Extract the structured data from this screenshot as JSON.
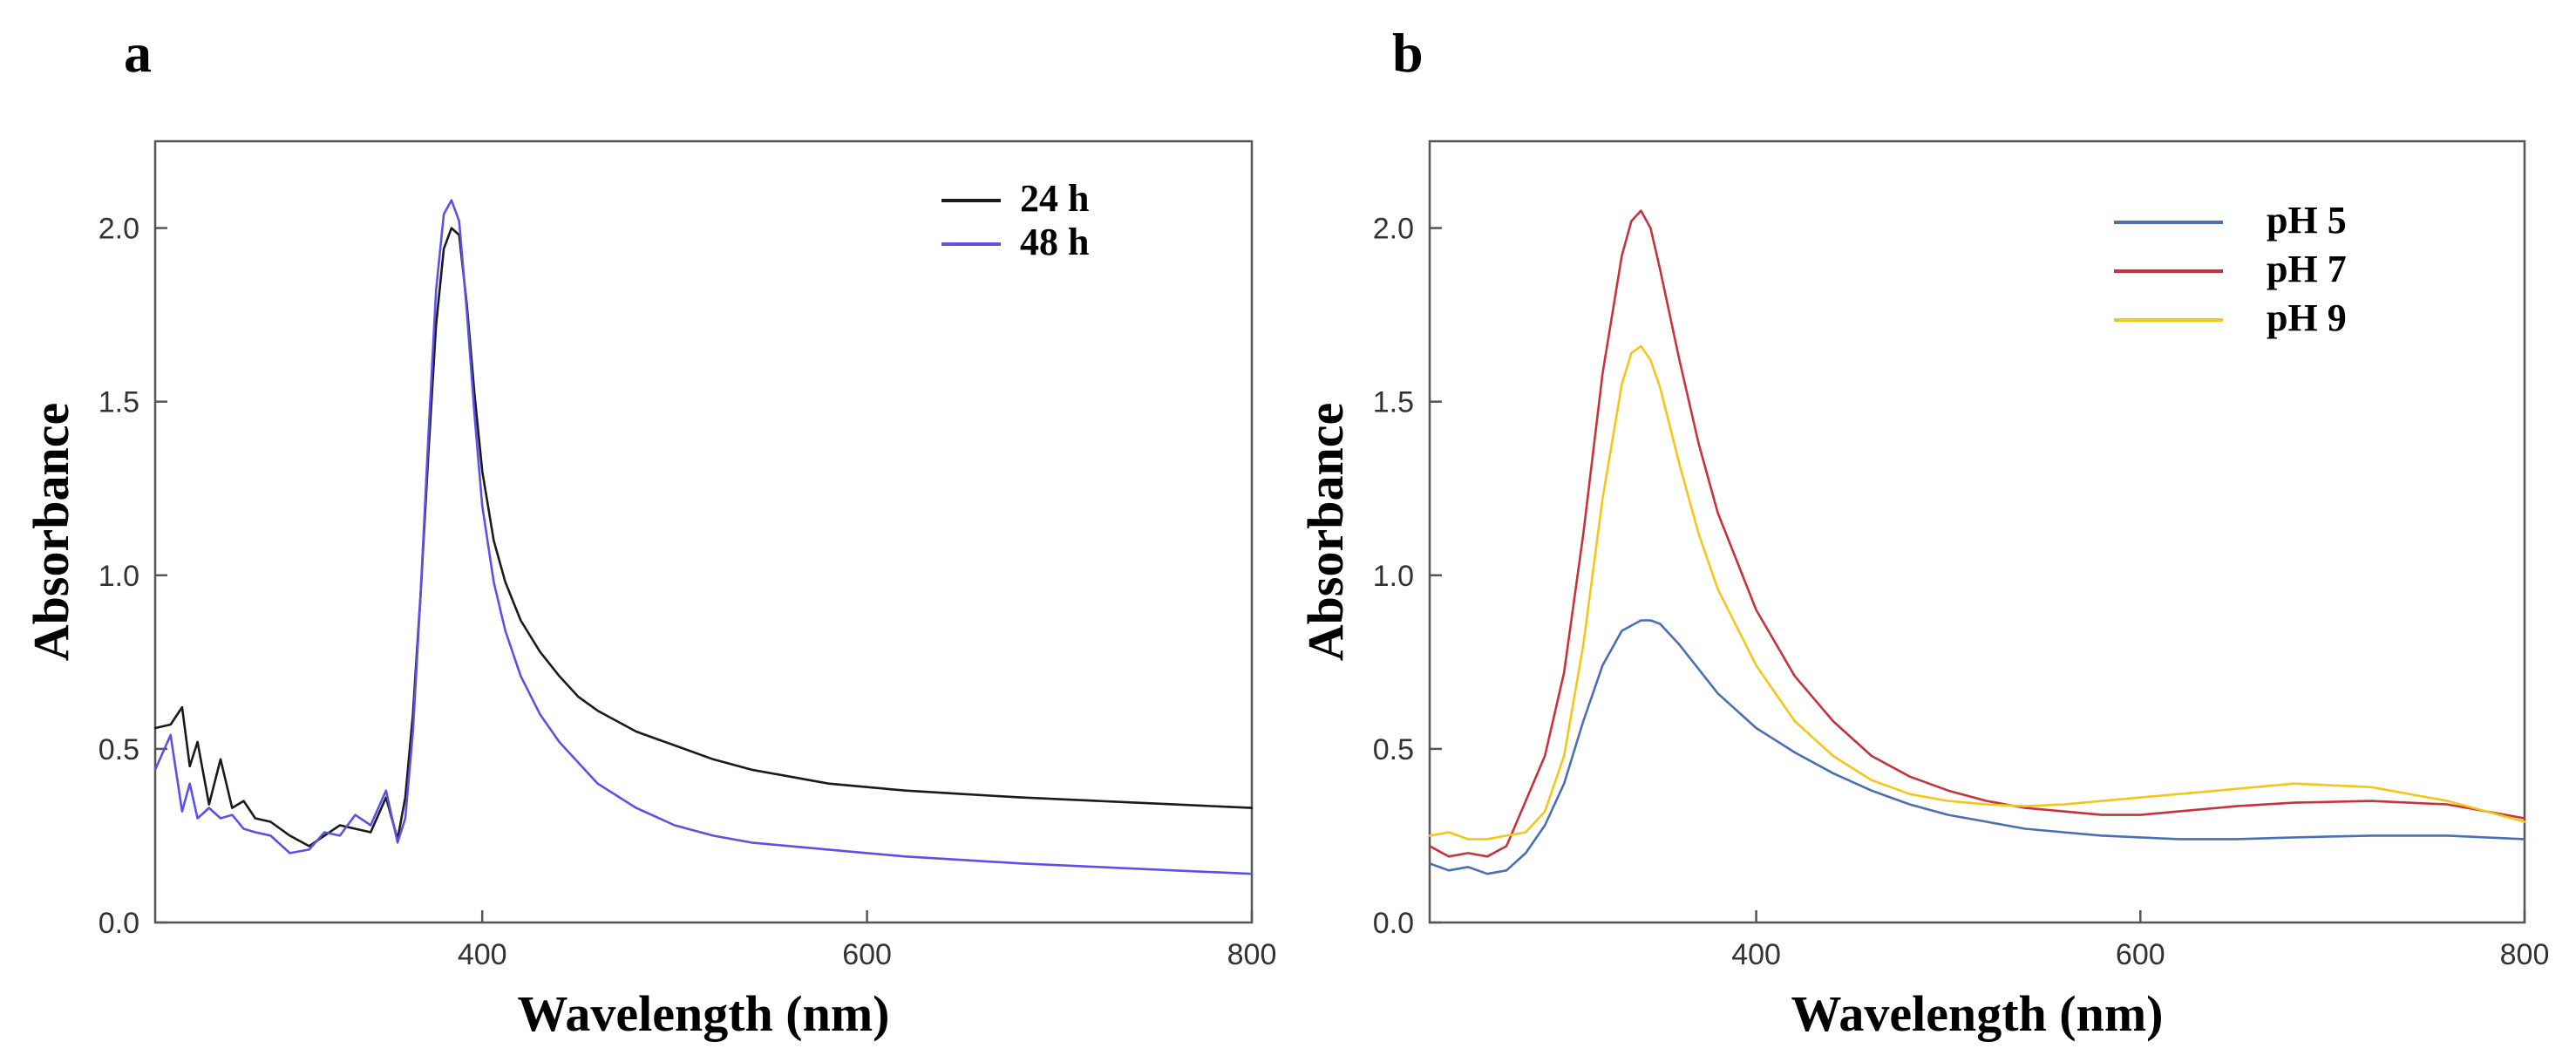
{
  "chart_data": [
    {
      "panel": "a",
      "type": "line",
      "title": "",
      "xlabel": "Wavelength (nm)",
      "ylabel": "Absorbance",
      "xlim": [
        230,
        800
      ],
      "ylim": [
        0,
        2.25
      ],
      "x_ticks": [
        400,
        600,
        800
      ],
      "y_ticks": [
        0.0,
        0.5,
        1.0,
        1.5,
        2.0
      ],
      "x_tick_labels": [
        "400",
        "600",
        "800"
      ],
      "y_tick_labels": [
        "0.0",
        "0.5",
        "1.0",
        "1.5",
        "2.0"
      ],
      "grid": false,
      "legend_position": "top-right",
      "series": [
        {
          "name": "24 h",
          "color": "#1a1a1a",
          "x": [
            230,
            238,
            244,
            248,
            252,
            258,
            264,
            270,
            276,
            282,
            290,
            300,
            310,
            318,
            326,
            334,
            342,
            350,
            356,
            360,
            364,
            368,
            372,
            376,
            380,
            384,
            388,
            392,
            396,
            400,
            406,
            412,
            420,
            430,
            440,
            450,
            460,
            480,
            500,
            520,
            540,
            560,
            580,
            600,
            620,
            650,
            680,
            720,
            760,
            800
          ],
          "y": [
            0.56,
            0.57,
            0.62,
            0.45,
            0.52,
            0.34,
            0.47,
            0.33,
            0.35,
            0.3,
            0.29,
            0.25,
            0.22,
            0.25,
            0.28,
            0.27,
            0.26,
            0.36,
            0.24,
            0.36,
            0.6,
            0.95,
            1.35,
            1.72,
            1.94,
            2.0,
            1.98,
            1.78,
            1.52,
            1.3,
            1.1,
            0.98,
            0.87,
            0.78,
            0.71,
            0.65,
            0.61,
            0.55,
            0.51,
            0.47,
            0.44,
            0.42,
            0.4,
            0.39,
            0.38,
            0.37,
            0.36,
            0.35,
            0.34,
            0.33
          ]
        },
        {
          "name": "48 h",
          "color": "#5a52e6",
          "x": [
            230,
            238,
            244,
            248,
            252,
            258,
            264,
            270,
            276,
            282,
            290,
            300,
            310,
            318,
            326,
            334,
            342,
            350,
            356,
            360,
            364,
            368,
            372,
            376,
            380,
            384,
            388,
            392,
            396,
            400,
            406,
            412,
            420,
            430,
            440,
            450,
            460,
            480,
            500,
            520,
            540,
            560,
            580,
            600,
            620,
            650,
            680,
            720,
            760,
            800
          ],
          "y": [
            0.44,
            0.54,
            0.32,
            0.4,
            0.3,
            0.33,
            0.3,
            0.31,
            0.27,
            0.26,
            0.25,
            0.2,
            0.21,
            0.26,
            0.25,
            0.31,
            0.28,
            0.38,
            0.23,
            0.3,
            0.55,
            0.95,
            1.4,
            1.82,
            2.04,
            2.08,
            2.02,
            1.76,
            1.46,
            1.2,
            0.98,
            0.84,
            0.71,
            0.6,
            0.52,
            0.46,
            0.4,
            0.33,
            0.28,
            0.25,
            0.23,
            0.22,
            0.21,
            0.2,
            0.19,
            0.18,
            0.17,
            0.16,
            0.15,
            0.14
          ]
        }
      ]
    },
    {
      "panel": "b",
      "type": "line",
      "title": "",
      "xlabel": "Wavelength (nm)",
      "ylabel": "Absorbance",
      "xlim": [
        230,
        800
      ],
      "ylim": [
        0,
        2.25
      ],
      "x_ticks": [
        400,
        600,
        800
      ],
      "y_ticks": [
        0.0,
        0.5,
        1.0,
        1.5,
        2.0
      ],
      "x_tick_labels": [
        "400",
        "600",
        "800"
      ],
      "y_tick_labels": [
        "0.0",
        "0.5",
        "1.0",
        "1.5",
        "2.0"
      ],
      "grid": false,
      "legend_position": "top-right",
      "series": [
        {
          "name": "pH 5",
          "color": "#4a6fb5",
          "x": [
            230,
            240,
            250,
            260,
            270,
            280,
            290,
            300,
            310,
            320,
            330,
            340,
            345,
            350,
            360,
            370,
            380,
            400,
            420,
            440,
            460,
            480,
            500,
            520,
            540,
            560,
            580,
            600,
            620,
            650,
            680,
            720,
            760,
            800
          ],
          "y": [
            0.17,
            0.15,
            0.16,
            0.14,
            0.15,
            0.2,
            0.28,
            0.4,
            0.58,
            0.74,
            0.84,
            0.87,
            0.87,
            0.86,
            0.8,
            0.73,
            0.66,
            0.56,
            0.49,
            0.43,
            0.38,
            0.34,
            0.31,
            0.29,
            0.27,
            0.26,
            0.25,
            0.245,
            0.24,
            0.24,
            0.245,
            0.25,
            0.25,
            0.24
          ]
        },
        {
          "name": "pH 7",
          "color": "#c8323c",
          "x": [
            230,
            240,
            250,
            260,
            270,
            280,
            290,
            300,
            310,
            320,
            330,
            335,
            340,
            345,
            350,
            360,
            370,
            380,
            400,
            420,
            440,
            460,
            480,
            500,
            520,
            540,
            560,
            580,
            600,
            620,
            650,
            680,
            720,
            760,
            800
          ],
          "y": [
            0.22,
            0.19,
            0.2,
            0.19,
            0.22,
            0.35,
            0.48,
            0.72,
            1.12,
            1.58,
            1.92,
            2.02,
            2.05,
            2.0,
            1.88,
            1.62,
            1.38,
            1.18,
            0.9,
            0.71,
            0.58,
            0.48,
            0.42,
            0.38,
            0.35,
            0.33,
            0.32,
            0.31,
            0.31,
            0.32,
            0.335,
            0.345,
            0.35,
            0.34,
            0.3
          ]
        },
        {
          "name": "pH 9",
          "color": "#f5c61a",
          "x": [
            230,
            240,
            250,
            260,
            270,
            280,
            290,
            300,
            310,
            320,
            330,
            335,
            340,
            345,
            350,
            360,
            370,
            380,
            400,
            420,
            440,
            460,
            480,
            500,
            520,
            540,
            560,
            580,
            600,
            620,
            650,
            680,
            720,
            760,
            800
          ],
          "y": [
            0.25,
            0.26,
            0.24,
            0.24,
            0.25,
            0.26,
            0.32,
            0.48,
            0.8,
            1.22,
            1.55,
            1.64,
            1.66,
            1.62,
            1.54,
            1.32,
            1.12,
            0.96,
            0.74,
            0.58,
            0.48,
            0.41,
            0.37,
            0.35,
            0.34,
            0.335,
            0.34,
            0.35,
            0.36,
            0.37,
            0.385,
            0.4,
            0.39,
            0.35,
            0.29
          ]
        }
      ]
    }
  ]
}
